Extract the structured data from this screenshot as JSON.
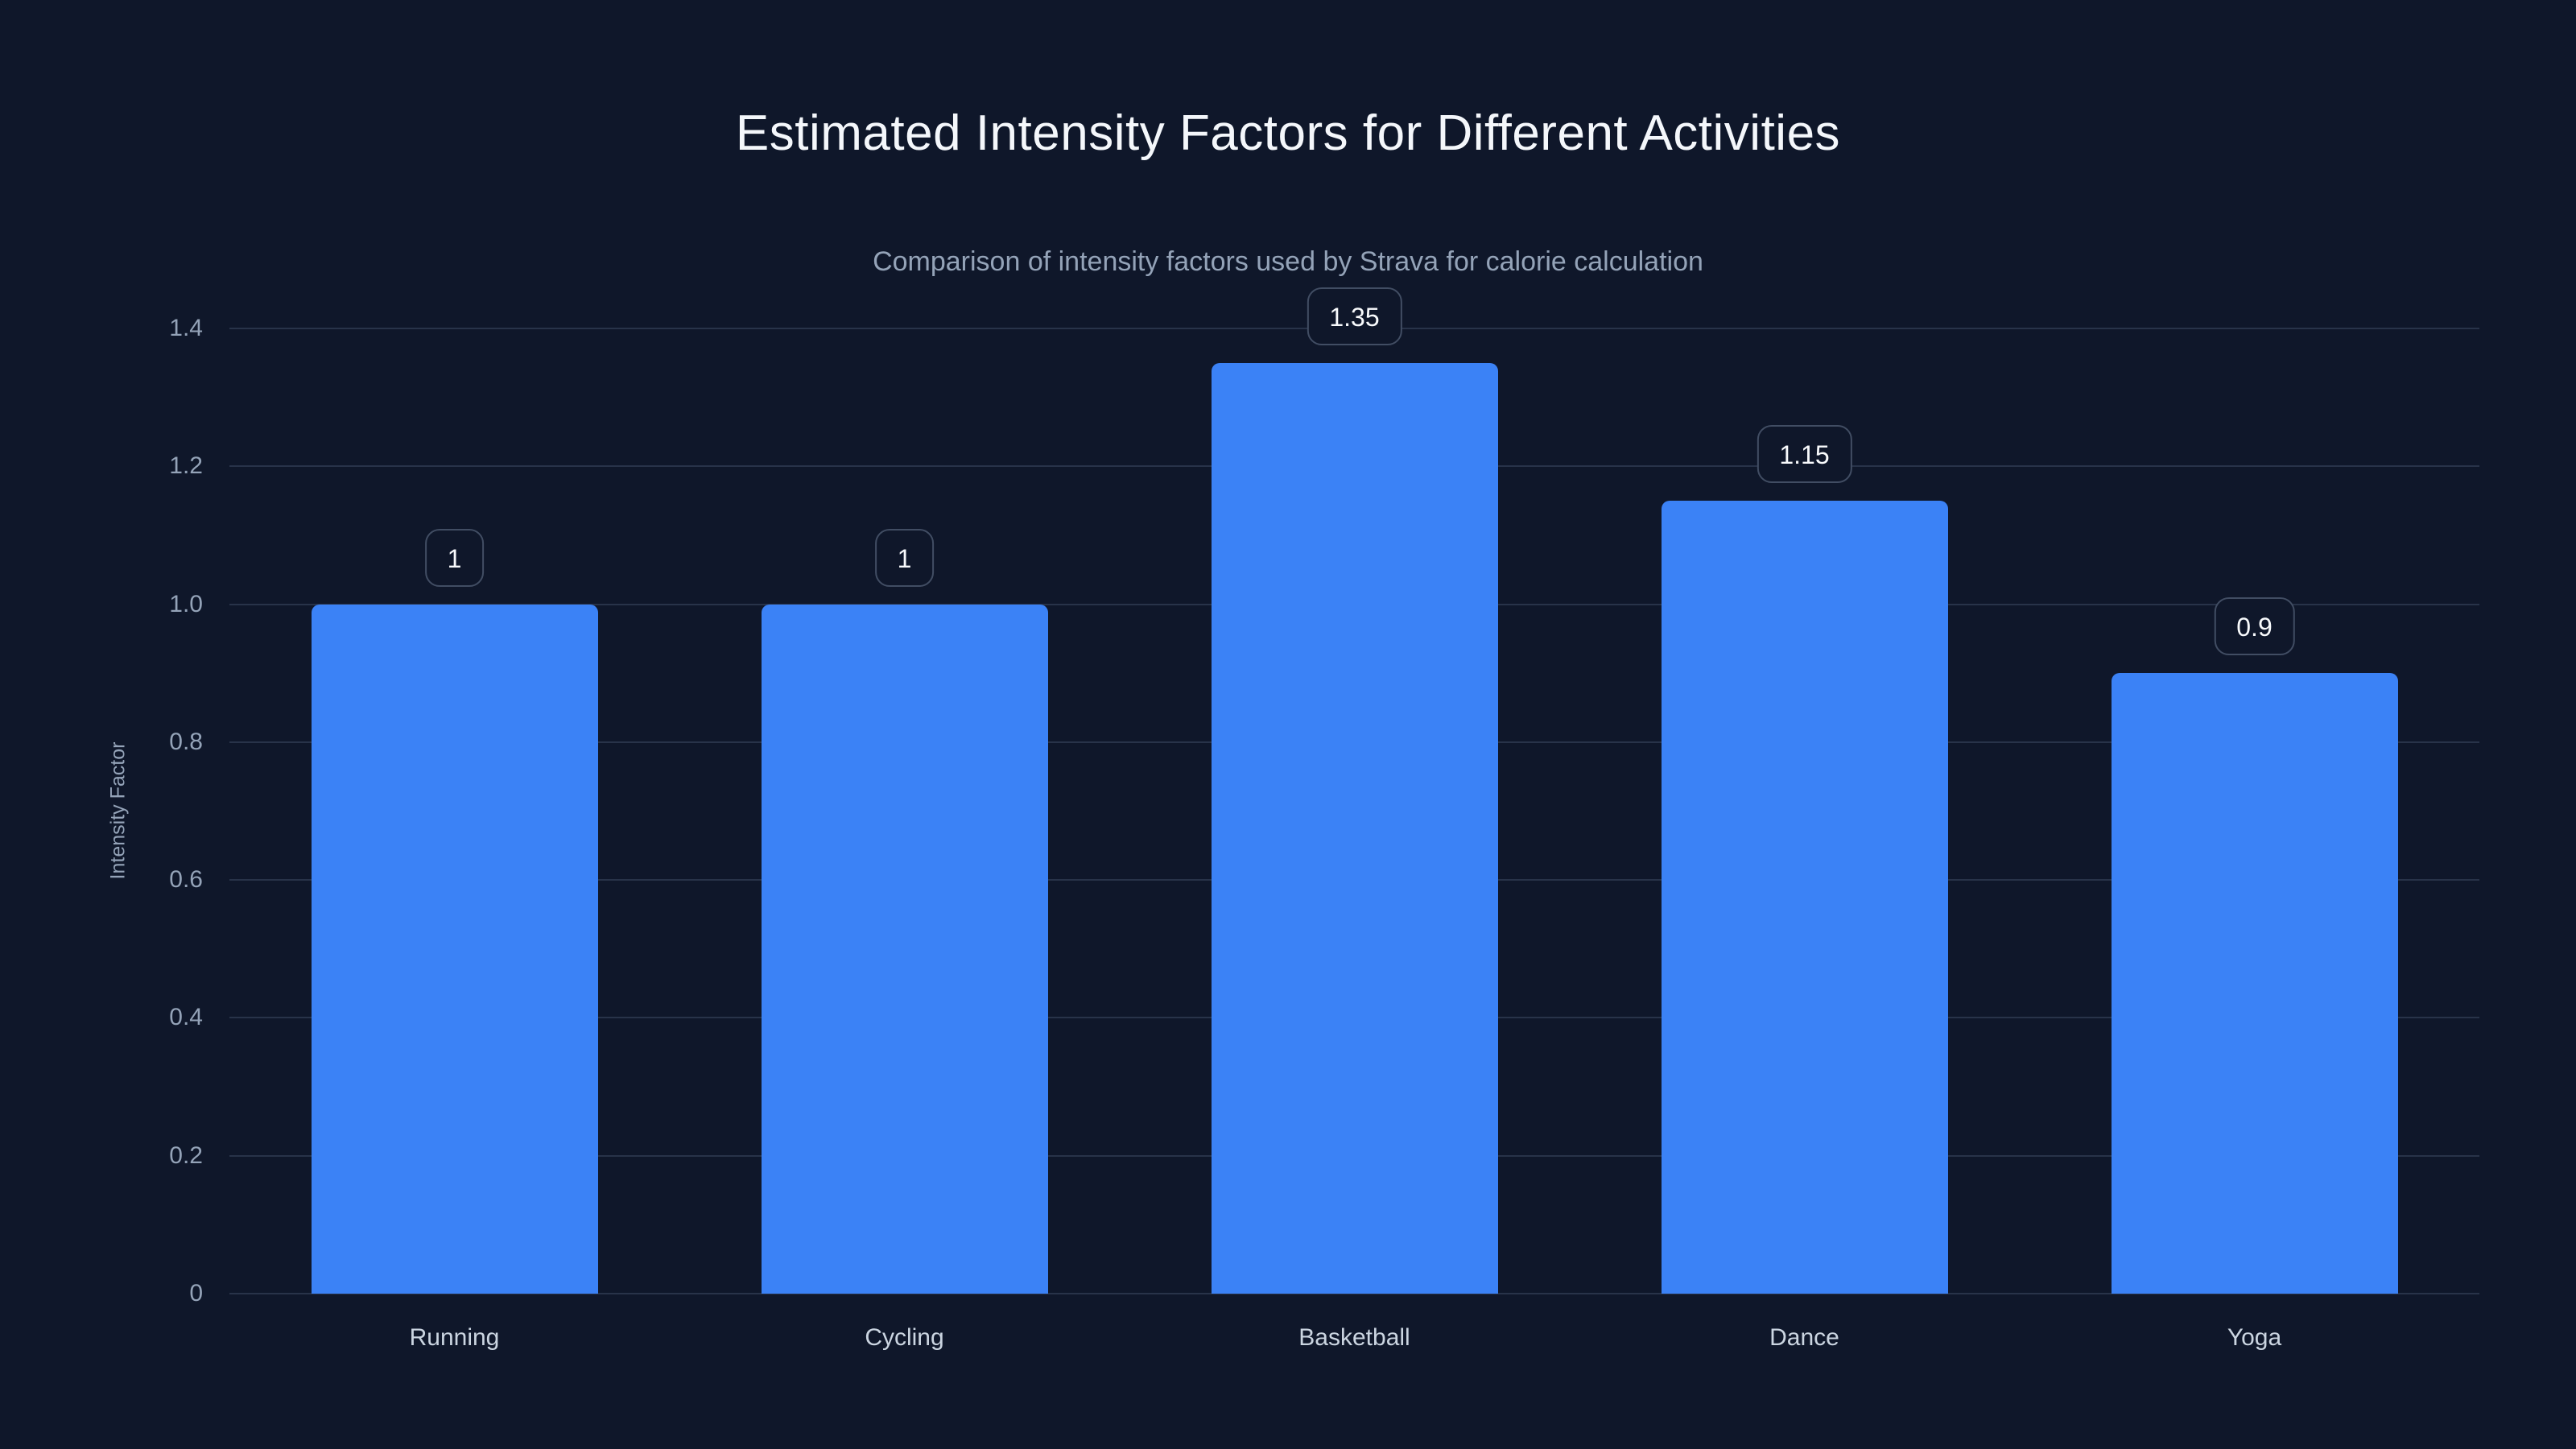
{
  "chart_data": {
    "type": "bar",
    "title": "Estimated Intensity Factors for Different Activities",
    "subtitle": "Comparison of intensity factors used by Strava for calorie calculation",
    "categories": [
      "Running",
      "Cycling",
      "Basketball",
      "Dance",
      "Yoga"
    ],
    "values": [
      1,
      1,
      1.35,
      1.15,
      0.9
    ],
    "value_labels": [
      "1",
      "1",
      "1.35",
      "1.15",
      "0.9"
    ],
    "xlabel": "",
    "ylabel": "Intensity Factor",
    "ylim": [
      0,
      1.4
    ],
    "yticks": [
      0,
      0.2,
      0.4,
      0.6,
      0.8,
      1.0,
      1.2,
      1.4
    ],
    "ytick_labels": [
      "0",
      "0.2",
      "0.4",
      "0.6",
      "0.8",
      "1.0",
      "1.2",
      "1.4"
    ],
    "grid": true,
    "legend": false,
    "colors": {
      "background": "#0f172a",
      "bar": "#3b82f6",
      "title_text": "#f4f7fb",
      "subtitle_text": "#94a3b8",
      "ytick_text": "#94a3b8",
      "category_text": "#cbd5e1",
      "gridline": "#283349",
      "badge_border": "#414d63",
      "badge_text": "#f8fafc"
    }
  }
}
